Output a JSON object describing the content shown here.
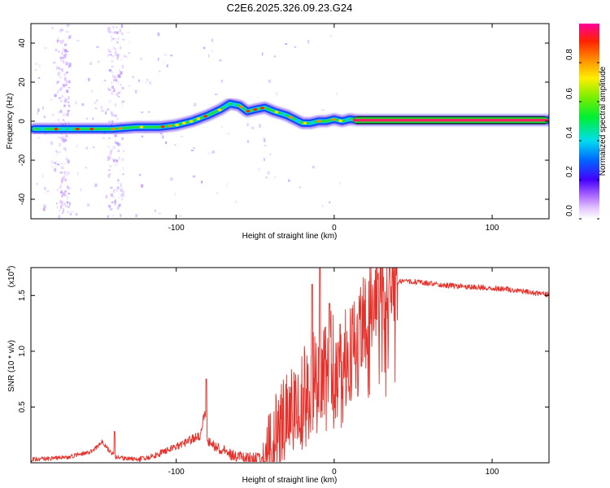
{
  "title": "C2E6.2025.326.09.23.G24",
  "chart_data": [
    {
      "type": "heatmap",
      "name": "spectrogram",
      "xlabel": "Height of straight line (km)",
      "ylabel": "Frequency (Hz)",
      "xlim": [
        -192,
        136
      ],
      "ylim": [
        -50,
        50
      ],
      "xticks": [
        -100,
        0,
        100
      ],
      "xtick_labels": [
        "-100",
        "0",
        "100"
      ],
      "yticks": [
        -40,
        -20,
        0,
        20,
        40
      ],
      "ytick_labels": [
        "-40",
        "-20",
        "0",
        "20",
        "40"
      ],
      "ridge": {
        "x": [
          -190,
          -175,
          -160,
          -150,
          -140,
          -125,
          -110,
          -100,
          -90,
          -80,
          -72,
          -66,
          -60,
          -55,
          -50,
          -44,
          -38,
          -30,
          -25,
          -20,
          -15,
          -10,
          -5,
          0,
          5,
          10,
          15,
          136
        ],
        "y": [
          -4,
          -4,
          -4,
          -4,
          -4,
          -3,
          -3,
          -2,
          0,
          3,
          6,
          9,
          8,
          5,
          6,
          7,
          5,
          3,
          1,
          -1,
          -1,
          0,
          0,
          1,
          0,
          1,
          0.5,
          0.5
        ]
      },
      "colorbar": {
        "label": "Normalized spectral amplitude",
        "ticks": [
          0.0,
          0.2,
          0.4,
          0.6,
          0.8
        ],
        "tick_labels": [
          "0.0",
          "0.2",
          "0.4",
          "0.6",
          "0.8"
        ],
        "range": [
          0,
          1
        ]
      }
    },
    {
      "type": "line",
      "name": "snr",
      "xlabel": "Height of straight line (km)",
      "ylabel": "SNR (10 * v/v)",
      "scale_label": "(x10",
      "scale_exp": "4",
      "scale_close": ")",
      "xlim": [
        -192,
        136
      ],
      "ylim": [
        0,
        1.75
      ],
      "xticks": [
        -100,
        0,
        100
      ],
      "xtick_labels": [
        "-100",
        "0",
        "100"
      ],
      "yticks": [
        0.5,
        1.0,
        1.5
      ],
      "ytick_labels": [
        "0.5",
        "1.0",
        "1.5"
      ],
      "series_color": "#e8302a",
      "envelope": {
        "x": [
          -192,
          -170,
          -155,
          -150,
          -147,
          -143,
          -138,
          -125,
          -115,
          -105,
          -95,
          -85,
          -82,
          -80,
          -75,
          -65,
          -55,
          -45,
          -40,
          -37,
          -33,
          -28,
          -23,
          -18,
          -13,
          -8,
          -3,
          2,
          7,
          12,
          17,
          22,
          27,
          32,
          37,
          45,
          55,
          65,
          75,
          85,
          100,
          115,
          125,
          136
        ],
        "y": [
          0.03,
          0.05,
          0.1,
          0.14,
          0.2,
          0.12,
          0.05,
          0.03,
          0.06,
          0.12,
          0.18,
          0.25,
          0.45,
          0.2,
          0.15,
          0.08,
          0.04,
          0.04,
          0.15,
          0.3,
          0.4,
          0.45,
          0.55,
          0.65,
          0.75,
          0.82,
          0.9,
          0.95,
          1.0,
          1.1,
          1.3,
          1.45,
          1.52,
          1.58,
          1.62,
          1.63,
          1.62,
          1.6,
          1.59,
          1.58,
          1.57,
          1.55,
          1.53,
          1.51
        ]
      },
      "spikes": [
        {
          "x": -139,
          "y": 0.28
        },
        {
          "x": -81,
          "y": 0.75
        },
        {
          "x": -14,
          "y": 1.6
        },
        {
          "x": -9,
          "y": 1.75
        },
        {
          "x": -3,
          "y": 1.43
        }
      ]
    }
  ]
}
